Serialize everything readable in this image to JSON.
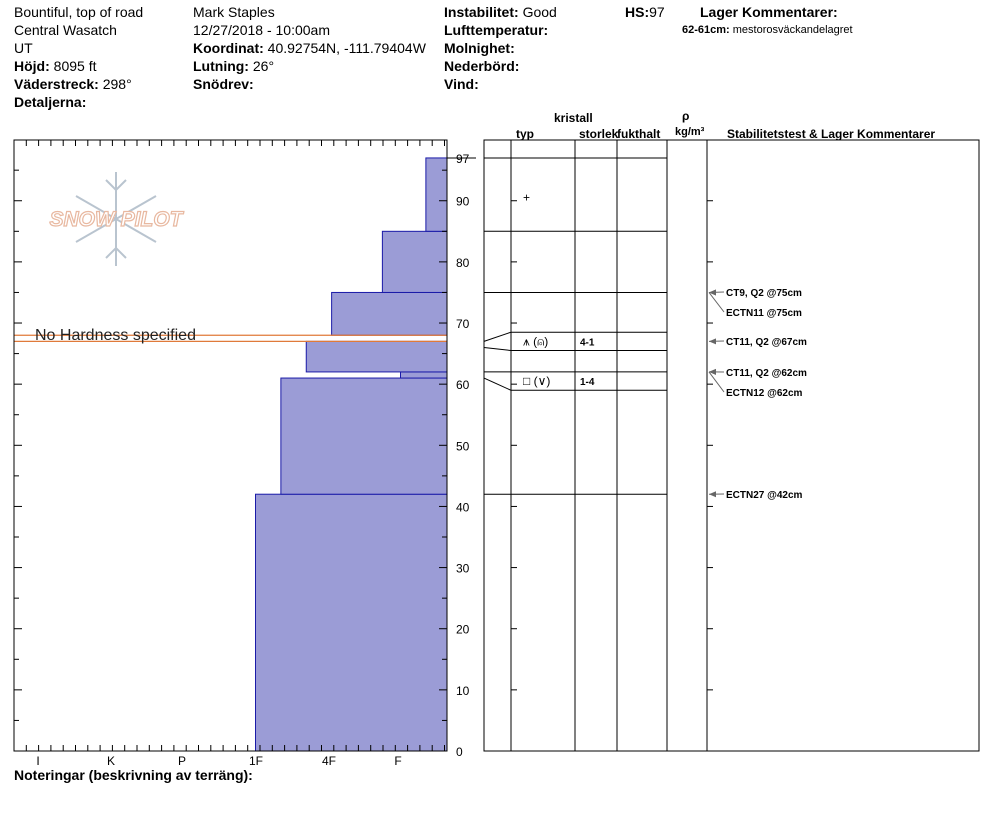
{
  "header": {
    "location": "Bountiful, top of road",
    "range": "Central Wasatch",
    "state": "UT",
    "elevation_label": "Höjd:",
    "elevation": "8095 ft",
    "aspect_label": "Väderstreck:",
    "aspect": "298°",
    "details_label": "Detaljerna:",
    "observer": "Mark Staples",
    "datetime": "12/27/2018 - 10:00am",
    "coord_label": "Koordinat:",
    "coord": "40.92754N, -111.79404W",
    "slope_label": "Lutning:",
    "slope": "26°",
    "drift_label": "Snödrev:",
    "instability_label": "Instabilitet:",
    "instability": "Good",
    "airtemp_label": "Lufttemperatur:",
    "cloud_label": "Molnighet:",
    "precip_label": "Nederbörd:",
    "wind_label": "Vind:",
    "hs_label": "HS:",
    "hs": "97",
    "layer_comments_label": "Lager Kommentarer:",
    "layer_comment_range": "62-61cm:",
    "layer_comment_text": "mestorosväckandelagret"
  },
  "columns": {
    "crystal": "kristall",
    "type": "typ",
    "size": "storlek",
    "moisture": "fukthalt",
    "rho": "ρ",
    "density_unit": "kg/m³",
    "stability": "Stabilitetstest & Lager Kommentarer"
  },
  "watermark": "SNOW PILOT",
  "no_hardness_text": "No Hardness specified",
  "notes_label": "Noteringar (beskrivning av terräng):",
  "chart_data": {
    "type": "bar",
    "orientation": "horizontal",
    "y_range": [
      0,
      97
    ],
    "y_ticks": [
      0,
      10,
      20,
      30,
      40,
      50,
      60,
      70,
      80,
      90,
      97
    ],
    "hardness_scale": [
      "I",
      "K",
      "P",
      "1F",
      "4F",
      "F"
    ],
    "hardness_scale_note": "hardness increases to the left; I = hardest, F = softest",
    "layers": [
      {
        "bottom": 0,
        "top": 42,
        "hardness_index": 3
      },
      {
        "bottom": 42,
        "top": 61,
        "hardness_index": 3.35
      },
      {
        "bottom": 61,
        "top": 62,
        "hardness_index": 5.0
      },
      {
        "bottom": 62,
        "top": 67,
        "hardness_index": 3.7
      },
      {
        "bottom": 68,
        "top": 75,
        "hardness_index": 4.05
      },
      {
        "bottom": 75,
        "top": 85,
        "hardness_index": 4.75
      },
      {
        "bottom": 85,
        "top": 97,
        "hardness_index": 5.35
      }
    ],
    "no_hardness_layer": {
      "bottom": 67,
      "top": 68
    },
    "layer_boundaries": [
      97,
      85,
      75,
      68.5,
      65.5,
      62,
      59,
      42
    ],
    "crystals": [
      {
        "depth": 90.5,
        "symbol": "+",
        "size": ""
      },
      {
        "depth": 67,
        "symbol": "⩚ (⍝)",
        "size": "4-1"
      },
      {
        "depth": 60.5,
        "symbol": "□ (∨)",
        "size": "1-4"
      }
    ],
    "tests": [
      {
        "depth": 75,
        "label": "CT9, Q2 @75cm"
      },
      {
        "depth": 75,
        "label": "ECTN11 @75cm"
      },
      {
        "depth": 67,
        "label": "CT11, Q2 @67cm"
      },
      {
        "depth": 62,
        "label": "CT11, Q2 @62cm"
      },
      {
        "depth": 62,
        "label": "ECTN12 @62cm"
      },
      {
        "depth": 42,
        "label": "ECTN27 @42cm"
      }
    ]
  }
}
